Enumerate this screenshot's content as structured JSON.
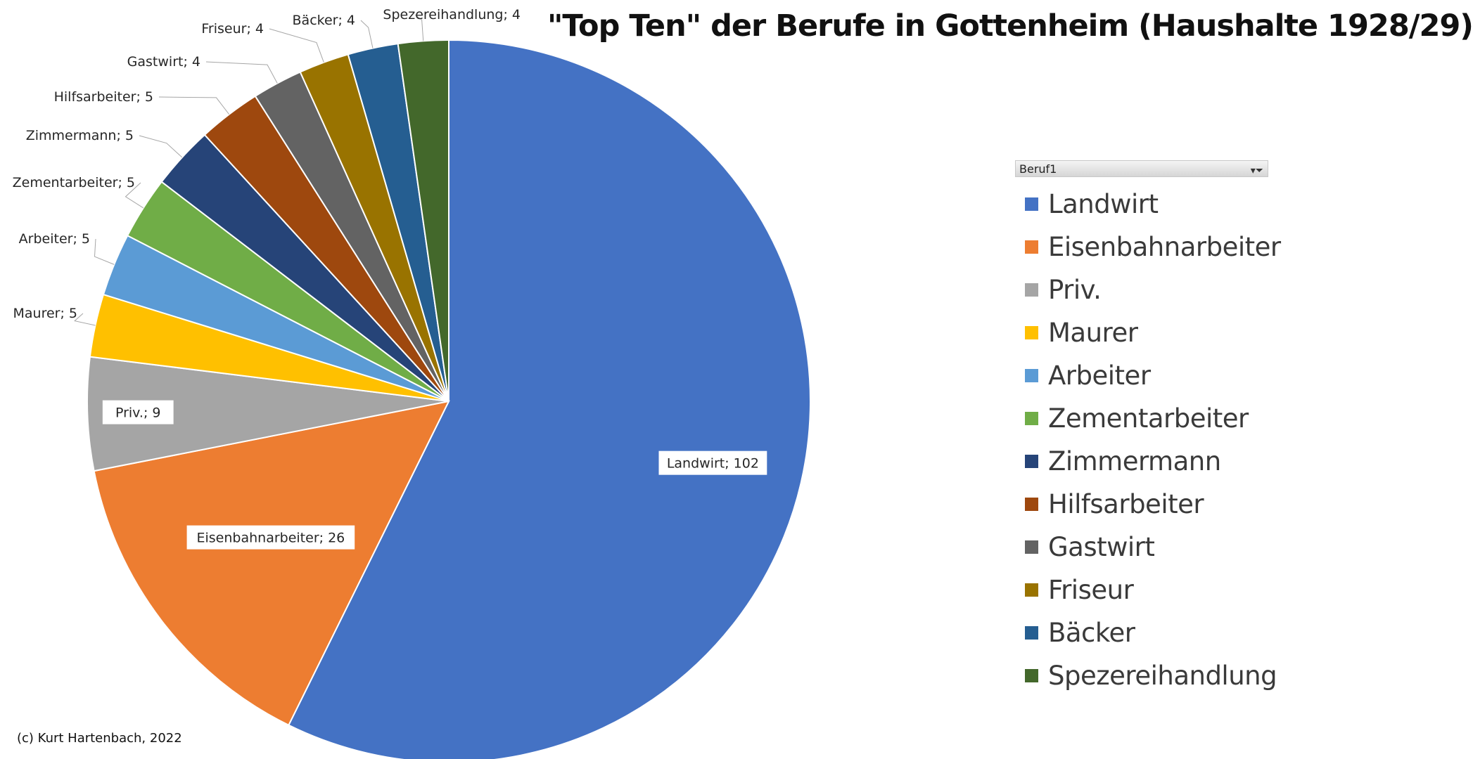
{
  "title": "\"Top Ten\" der Berufe in Gottenheim (Haushalte 1928/29)",
  "copyright": "(c) Kurt Hartenbach, 2022",
  "legend_header": "Beruf1",
  "legend_filter_icon": "filter-icon",
  "chart_data": {
    "type": "pie",
    "title": "\"Top Ten\" der Berufe in Gottenheim (Haushalte 1928/29)",
    "legend_title": "Beruf1",
    "legend_position": "right",
    "slices": [
      {
        "name": "Landwirt",
        "value": 102,
        "color": "#4472C4",
        "label": "Landwirt; 102"
      },
      {
        "name": "Eisenbahnarbeiter",
        "value": 26,
        "color": "#ED7D31",
        "label": "Eisenbahnarbeiter; 26"
      },
      {
        "name": "Priv.",
        "value": 9,
        "color": "#A5A5A5",
        "label": "Priv.; 9"
      },
      {
        "name": "Maurer",
        "value": 5,
        "color": "#FFC000",
        "label": "Maurer; 5"
      },
      {
        "name": "Arbeiter",
        "value": 5,
        "color": "#5B9BD5",
        "label": "Arbeiter; 5"
      },
      {
        "name": "Zementarbeiter",
        "value": 5,
        "color": "#70AD47",
        "label": "Zementarbeiter; 5"
      },
      {
        "name": "Zimmermann",
        "value": 5,
        "color": "#264478",
        "label": "Zimmermann; 5"
      },
      {
        "name": "Hilfsarbeiter",
        "value": 5,
        "color": "#9E480E",
        "label": "Hilfsarbeiter; 5"
      },
      {
        "name": "Gastwirt",
        "value": 4,
        "color": "#636363",
        "label": "Gastwirt; 4"
      },
      {
        "name": "Friseur",
        "value": 4,
        "color": "#997300",
        "label": "Friseur; 4"
      },
      {
        "name": "Bäcker",
        "value": 4,
        "color": "#255E91",
        "label": "Bäcker; 4"
      },
      {
        "name": "Spezereihandlung",
        "value": 4,
        "color": "#43682B",
        "label": "Spezereihandlung; 4"
      }
    ]
  }
}
